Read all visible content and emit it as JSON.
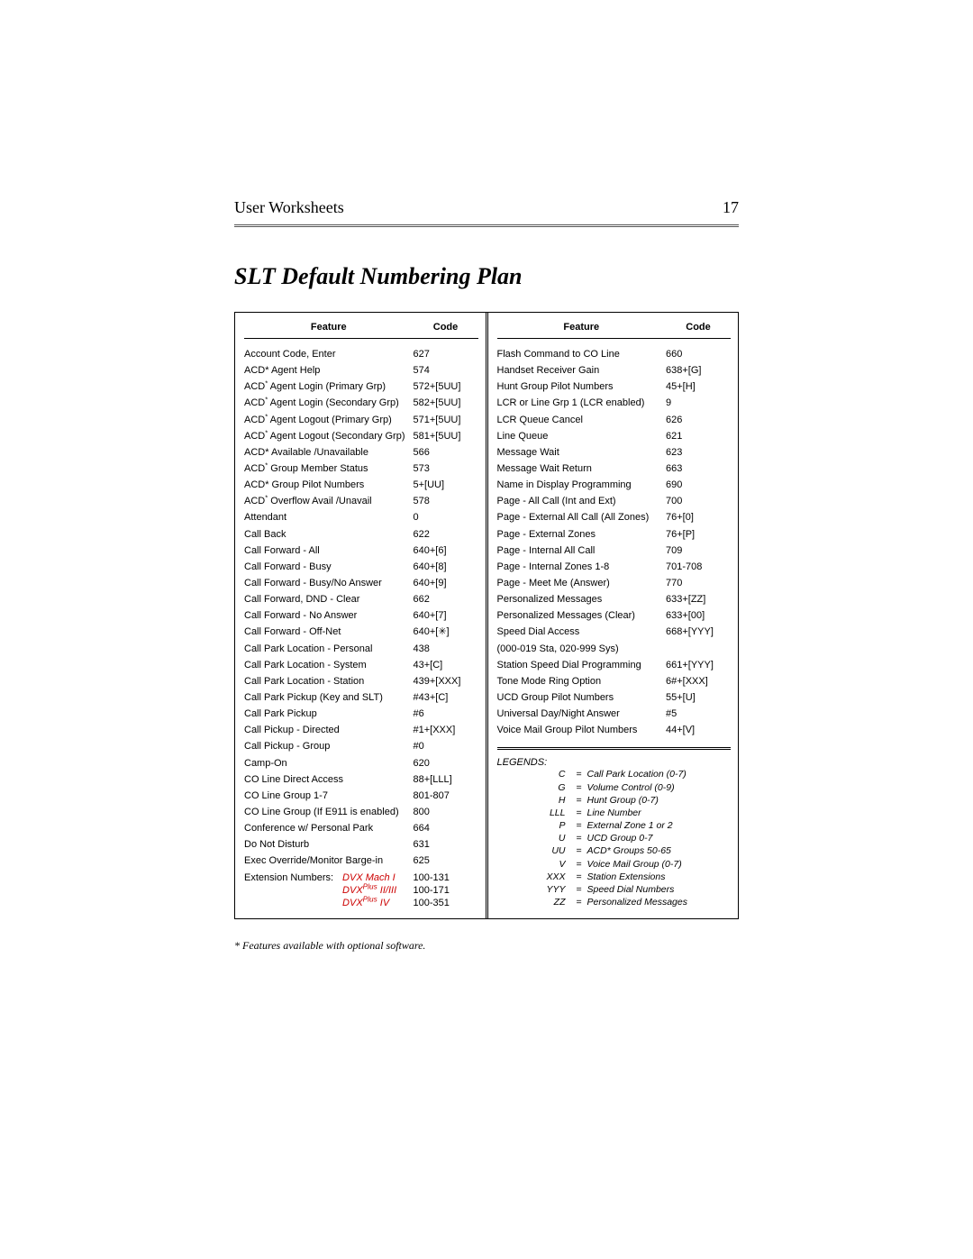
{
  "header": {
    "title": "User Worksheets",
    "page": "17"
  },
  "section_title": "SLT Default Numbering Plan",
  "table_headers": {
    "feature": "Feature",
    "code": "Code"
  },
  "left_rows": [
    {
      "feature": "Account Code, Enter",
      "code": "627"
    },
    {
      "feature": "ACD* Agent Help",
      "code": "574"
    },
    {
      "feature": "ACD<sup>*</sup> Agent Login (Primary Grp)",
      "code": "572+[5UU]"
    },
    {
      "feature": "ACD<sup>*</sup> Agent Login (Secondary Grp)",
      "code": "582+[5UU]"
    },
    {
      "feature": "ACD<sup>*</sup> Agent Logout (Primary Grp)",
      "code": "571+[5UU]"
    },
    {
      "feature": "ACD<sup>*</sup> Agent Logout (Secondary Grp)",
      "code": "581+[5UU]"
    },
    {
      "feature": "ACD* Available /Unavailable",
      "code": "566"
    },
    {
      "feature": "ACD<sup>*</sup> Group Member Status",
      "code": "573"
    },
    {
      "feature": "ACD* Group Pilot Numbers",
      "code": "5+[UU]"
    },
    {
      "feature": "ACD<sup>*</sup> Overflow Avail /Unavail",
      "code": "578"
    },
    {
      "feature": "Attendant",
      "code": "0"
    },
    {
      "feature": "Call Back",
      "code": "622"
    },
    {
      "feature": "Call Forward - All",
      "code": "640+[6]"
    },
    {
      "feature": "Call Forward - Busy",
      "code": "640+[8]"
    },
    {
      "feature": "Call Forward - Busy/No Answer",
      "code": "640+[9]"
    },
    {
      "feature": "Call Forward, DND - Clear",
      "code": "662"
    },
    {
      "feature": "Call Forward - No Answer",
      "code": "640+[7]"
    },
    {
      "feature": "Call Forward - Off-Net",
      "code": "640+[✳]"
    },
    {
      "feature": "Call Park Location - Personal",
      "code": "438"
    },
    {
      "feature": "Call Park Location - System",
      "code": "43+[C]"
    },
    {
      "feature": "Call Park Location - Station",
      "code": "439+[XXX]"
    },
    {
      "feature": "Call Park Pickup (Key and SLT)",
      "code": "#43+[C]"
    },
    {
      "feature": "Call Park Pickup",
      "code": "#6"
    },
    {
      "feature": "Call Pickup - Directed",
      "code": "#1+[XXX]"
    },
    {
      "feature": "Call Pickup - Group",
      "code": "#0"
    },
    {
      "feature": "Camp-On",
      "code": "620"
    },
    {
      "feature": "CO Line Direct Access",
      "code": "88+[LLL]"
    },
    {
      "feature": "CO Line Group 1-7",
      "code": "801-807"
    },
    {
      "feature": "CO Line Group (If E911 is enabled)",
      "code": "800"
    },
    {
      "feature": "Conference w/ Personal Park",
      "code": "664"
    },
    {
      "feature": "Do Not Disturb",
      "code": "631"
    },
    {
      "feature": "Exec Override/Monitor Barge-in",
      "code": "625"
    }
  ],
  "ext": {
    "label": "Extension Numbers:",
    "models": [
      "DVX Mach I",
      "DVX<span class=\"plus-sup\">Plus</span> II/III",
      "DVX<span class=\"plus-sup\">Plus</span> IV"
    ],
    "codes": [
      "100-131",
      "100-171",
      "100-351"
    ]
  },
  "right_rows": [
    {
      "feature": "Flash Command to CO Line",
      "code": "660"
    },
    {
      "feature": "Handset Receiver Gain",
      "code": "638+[G]"
    },
    {
      "feature": "Hunt Group Pilot Numbers",
      "code": "45+[H]"
    },
    {
      "feature": "LCR or Line Grp 1 (LCR enabled)",
      "code": "9"
    },
    {
      "feature": "LCR Queue Cancel",
      "code": "626"
    },
    {
      "feature": "Line Queue",
      "code": "621"
    },
    {
      "feature": "Message Wait",
      "code": "623"
    },
    {
      "feature": "Message Wait Return",
      "code": "663"
    },
    {
      "feature": "Name in Display Programming",
      "code": "690"
    },
    {
      "feature": "Page - All Call (Int and Ext)",
      "code": "700"
    },
    {
      "feature": "Page - External All Call (All Zones)",
      "code": "76+[0]"
    },
    {
      "feature": "Page - External Zones",
      "code": "76+[P]"
    },
    {
      "feature": "Page - Internal All Call",
      "code": "709"
    },
    {
      "feature": "Page - Internal Zones 1-8",
      "code": "701-708"
    },
    {
      "feature": "Page - Meet Me (Answer)",
      "code": "770"
    },
    {
      "feature": "Personalized Messages",
      "code": "633+[ZZ]"
    },
    {
      "feature": "Personalized Messages (Clear)",
      "code": "633+[00]"
    },
    {
      "feature": "Speed Dial Access",
      "code": "668+[YYY]"
    },
    {
      "feature": "(000-019 Sta, 020-999 Sys)",
      "code": ""
    },
    {
      "feature": "Station Speed Dial Programming",
      "code": "661+[YYY]"
    },
    {
      "feature": "Tone Mode Ring Option",
      "code": "6#+[XXX]"
    },
    {
      "feature": "UCD Group Pilot Numbers",
      "code": "55+[U]"
    },
    {
      "feature": "Universal Day/Night Answer",
      "code": "#5"
    },
    {
      "feature": "Voice Mail Group Pilot Numbers",
      "code": "44+[V]"
    }
  ],
  "legends": {
    "title": "LEGENDS:",
    "items": [
      {
        "key": "C",
        "desc": "Call Park Location (0-7)"
      },
      {
        "key": "G",
        "desc": "Volume Control (0-9)"
      },
      {
        "key": "H",
        "desc": "Hunt Group (0-7)"
      },
      {
        "key": "LLL",
        "desc": "Line Number"
      },
      {
        "key": "P",
        "desc": "External Zone 1 or 2"
      },
      {
        "key": "U",
        "desc": "UCD Group 0-7"
      },
      {
        "key": "UU",
        "desc": "ACD* Groups 50-65"
      },
      {
        "key": "V",
        "desc": "Voice Mail Group (0-7)"
      },
      {
        "key": "XXX",
        "desc": "Station Extensions"
      },
      {
        "key": "YYY",
        "desc": "Speed Dial Numbers"
      },
      {
        "key": "ZZ",
        "desc": "Personalized Messages"
      }
    ]
  },
  "footnote": "* Features available with optional software."
}
